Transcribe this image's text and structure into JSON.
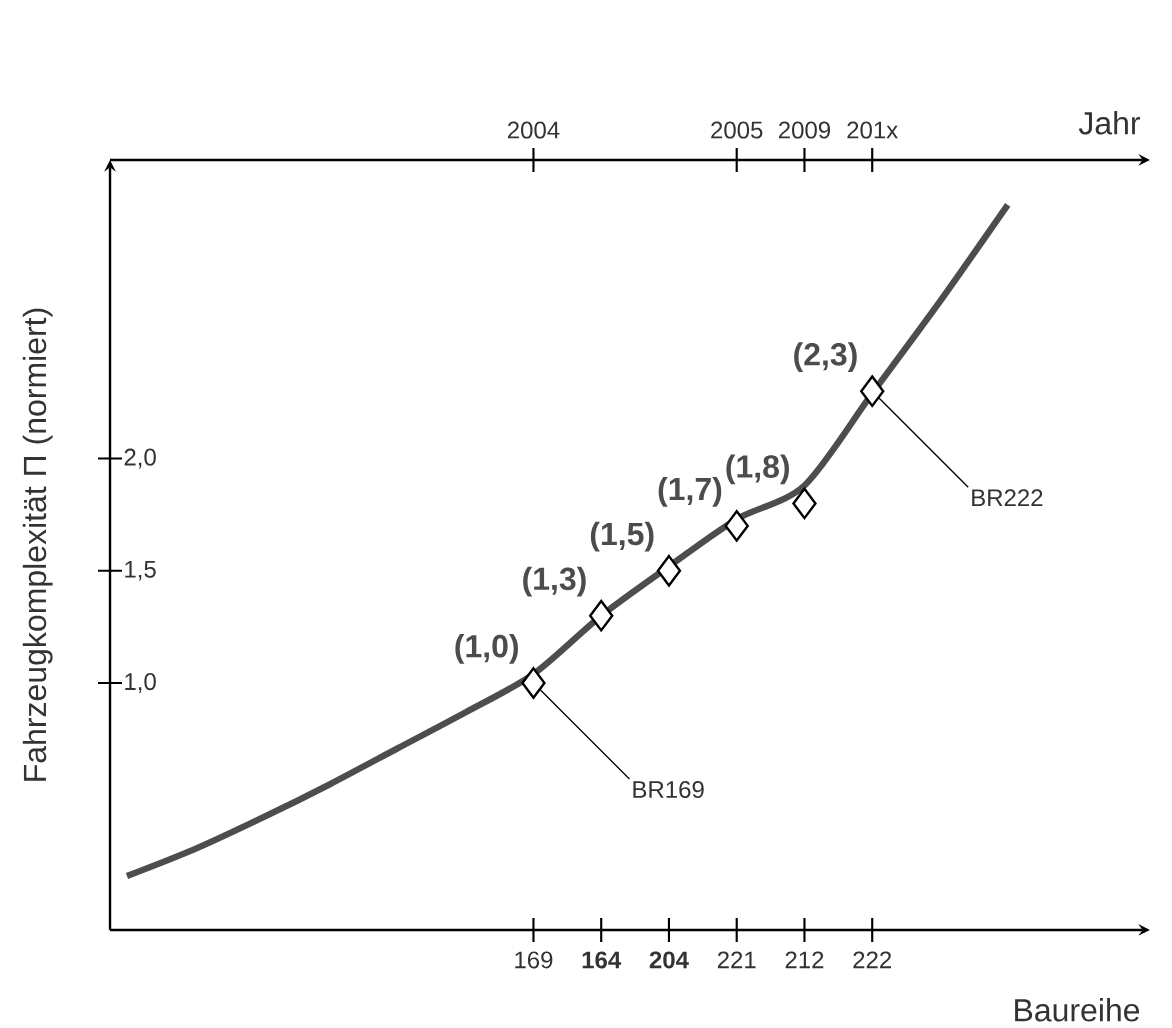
{
  "chart_data": {
    "type": "line",
    "xlabel": "Baureihe",
    "ylabel": "Fahrzeugkomplexität Π (normiert)",
    "x2label": "Jahr",
    "categories": [
      null,
      null,
      null,
      null,
      null,
      null,
      "169",
      "**164**",
      "**204**",
      "221",
      "212",
      "222",
      null,
      null
    ],
    "ylim": [
      -0.1,
      3.33
    ],
    "yticks": [
      {
        "value": 1.0,
        "label": "1,0"
      },
      {
        "value": 1.5,
        "label": "1,5"
      },
      {
        "value": 2.0,
        "label": "2,0"
      }
    ],
    "series": [
      {
        "color": "#4d4d4d",
        "values": [
          0.14,
          0.26,
          0.4,
          0.55,
          0.71,
          0.87,
          1.04,
          1.3,
          1.52,
          1.73,
          1.88,
          2.29,
          2.7,
          3.13
        ]
      },
      {
        "type": "scatter",
        "color": "#000000",
        "marker": "diamond",
        "values": [
          null,
          null,
          null,
          null,
          null,
          null,
          1.0,
          1.3,
          1.5,
          1.7,
          1.8,
          2.3,
          null,
          null
        ],
        "value_labels": [
          null,
          null,
          null,
          null,
          null,
          null,
          "(1,0)",
          "(1,3)",
          "(1,5)",
          "(1,7)",
          "(1,8)",
          "(2,3)",
          null,
          null
        ]
      }
    ],
    "annotations": [
      {
        "text": "BR169",
        "x": "169",
        "y": 1.0
      },
      {
        "text": "BR222",
        "x": "222",
        "y": 2.3
      },
      {
        "text": "2004",
        "x": "169"
      },
      {
        "text": "2005",
        "x": "221"
      },
      {
        "text": "2009",
        "x": "212"
      },
      {
        "text": "201x",
        "x": "222"
      }
    ]
  }
}
